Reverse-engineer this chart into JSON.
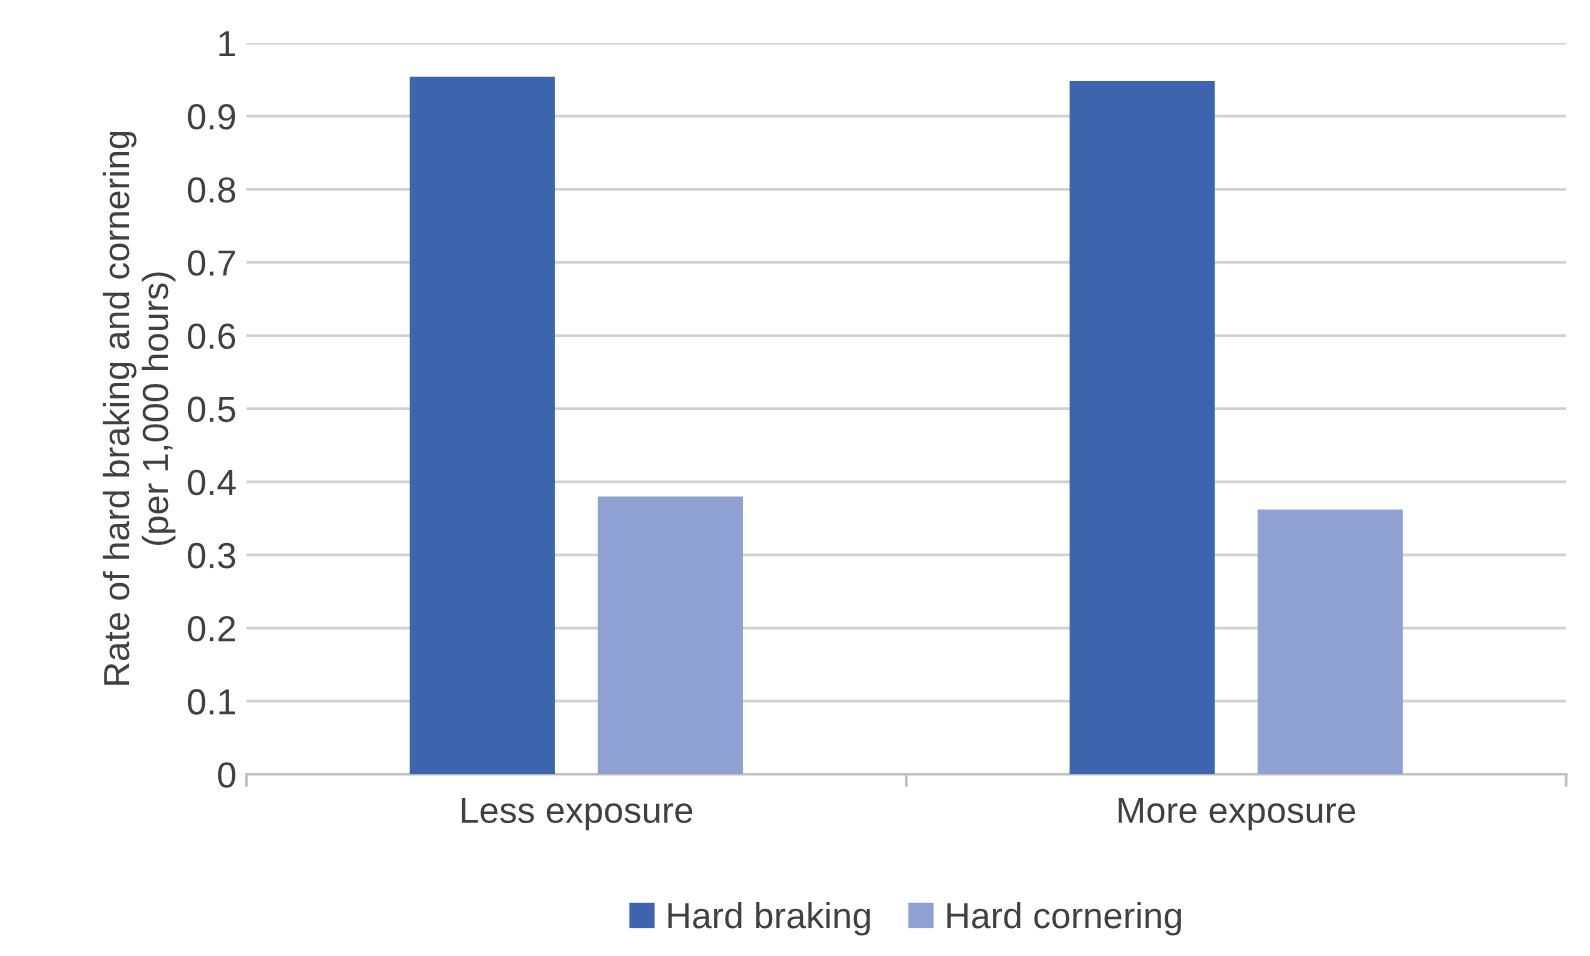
{
  "chart_data": {
    "type": "bar",
    "ylabel": "Rate of hard braking and cornering\n(per 1,000 hours)",
    "categories": [
      "Less exposure",
      "More exposure"
    ],
    "series": [
      {
        "name": "Hard braking",
        "color": "#3c65ad",
        "values": [
          0.954,
          0.948
        ]
      },
      {
        "name": "Hard cornering",
        "color": "#8fa1d3",
        "values": [
          0.38,
          0.362
        ]
      }
    ],
    "ylim": [
      0,
      1
    ],
    "yticks": [
      0,
      0.1,
      0.2,
      0.3,
      0.4,
      0.5,
      0.6,
      0.7,
      0.8,
      0.9,
      1
    ],
    "grid": "y",
    "legend": "bottom"
  }
}
